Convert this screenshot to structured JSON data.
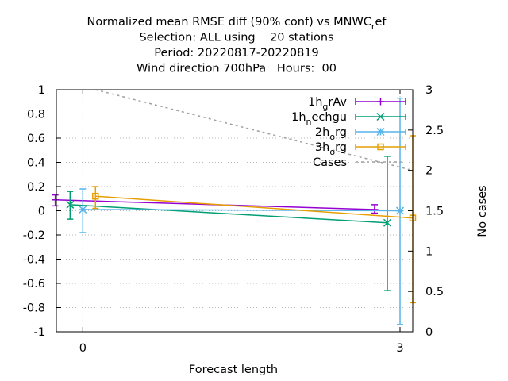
{
  "chart_data": {
    "type": "line",
    "title_lines": [
      "Normalized mean RMSE diff (90% conf) vs MNWC",
      "Selection: ALL using    20 stations",
      "Period: 20220817-20220819",
      "Wind direction 700hPa   Hours:  00"
    ],
    "title_sub": "r",
    "title_tail": "ef",
    "xlabel": "Forecast length",
    "ylabel": "",
    "y2label": "No cases",
    "xlim": [
      -0.25,
      3.12
    ],
    "ylim": [
      -1,
      1
    ],
    "y2lim": [
      0,
      3
    ],
    "x_ticks": [
      0,
      3
    ],
    "y_ticks": [
      -1,
      -0.8,
      -0.6,
      -0.4,
      -0.2,
      0,
      0.2,
      0.4,
      0.6,
      0.8,
      1
    ],
    "y_tick_labels": [
      "-1",
      "-0.8",
      "-0.6",
      "-0.4",
      "-0.2",
      "0",
      "0.2",
      "0.4",
      "0.6",
      "0.8",
      "1"
    ],
    "y2_ticks": [
      0,
      0.5,
      1,
      1.5,
      2,
      2.5,
      3
    ],
    "y2_tick_labels": [
      "0",
      "0.5",
      "1",
      "1.5",
      "2",
      "2.5",
      "3"
    ],
    "grid": true,
    "legend_position": "top-right",
    "series": [
      {
        "name": "1h",
        "sub": "g",
        "tail": "rAv",
        "color": "#9400d3",
        "marker": "plus",
        "x": [
          -0.26,
          2.76
        ],
        "y": [
          0.09,
          0.01
        ],
        "err_low": [
          0.04,
          -0.02
        ],
        "err_high": [
          0.13,
          0.05
        ]
      },
      {
        "name": "1h",
        "sub": "n",
        "tail": "echgu",
        "color": "#009e73",
        "marker": "cross",
        "x": [
          -0.12,
          2.88
        ],
        "y": [
          0.05,
          -0.1
        ],
        "err_low": [
          -0.07,
          -0.66
        ],
        "err_high": [
          0.16,
          0.45
        ]
      },
      {
        "name": "2h",
        "sub": "o",
        "tail": "rg",
        "color": "#56b4e9",
        "marker": "star",
        "x": [
          0,
          3
        ],
        "y": [
          0.01,
          0.0
        ],
        "err_low": [
          -0.18,
          -0.94
        ],
        "err_high": [
          0.18,
          0.93
        ]
      },
      {
        "name": "3h",
        "sub": "o",
        "tail": "rg",
        "color": "#e69f00",
        "marker": "square",
        "x": [
          0.12,
          3.12
        ],
        "y": [
          0.12,
          -0.06
        ],
        "err_low": [
          0.02,
          -0.76
        ],
        "err_high": [
          0.2,
          0.62
        ]
      },
      {
        "name": "Cases",
        "color": "#a0a0a0",
        "marker": "none",
        "axis": "y2",
        "dashed": true,
        "x": [
          0.12,
          3.12
        ],
        "y": [
          3,
          2
        ]
      }
    ]
  }
}
